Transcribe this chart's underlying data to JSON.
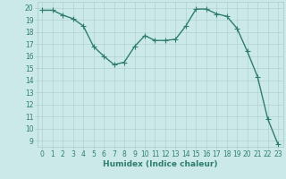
{
  "x": [
    0,
    1,
    2,
    3,
    4,
    5,
    6,
    7,
    8,
    9,
    10,
    11,
    12,
    13,
    14,
    15,
    16,
    17,
    18,
    19,
    20,
    21,
    22,
    23
  ],
  "y": [
    19.8,
    19.8,
    19.4,
    19.1,
    18.5,
    16.8,
    16.0,
    15.3,
    15.5,
    16.8,
    17.7,
    17.3,
    17.3,
    17.4,
    18.5,
    19.9,
    19.9,
    19.5,
    19.3,
    18.3,
    16.4,
    14.3,
    10.8,
    8.7
  ],
  "line_color": "#2e7d6e",
  "marker": "+",
  "marker_size": 4,
  "background_color": "#cce9e9",
  "grid_color": "#aacccc",
  "xlabel": "Humidex (Indice chaleur)",
  "xlim": [
    -0.5,
    23.5
  ],
  "ylim": [
    8.5,
    20.5
  ],
  "yticks": [
    9,
    10,
    11,
    12,
    13,
    14,
    15,
    16,
    17,
    18,
    19,
    20
  ],
  "xticks": [
    0,
    1,
    2,
    3,
    4,
    5,
    6,
    7,
    8,
    9,
    10,
    11,
    12,
    13,
    14,
    15,
    16,
    17,
    18,
    19,
    20,
    21,
    22,
    23
  ],
  "tick_fontsize": 5.5,
  "label_fontsize": 6.5,
  "line_width": 1.0,
  "marker_color": "#2e7d6e"
}
